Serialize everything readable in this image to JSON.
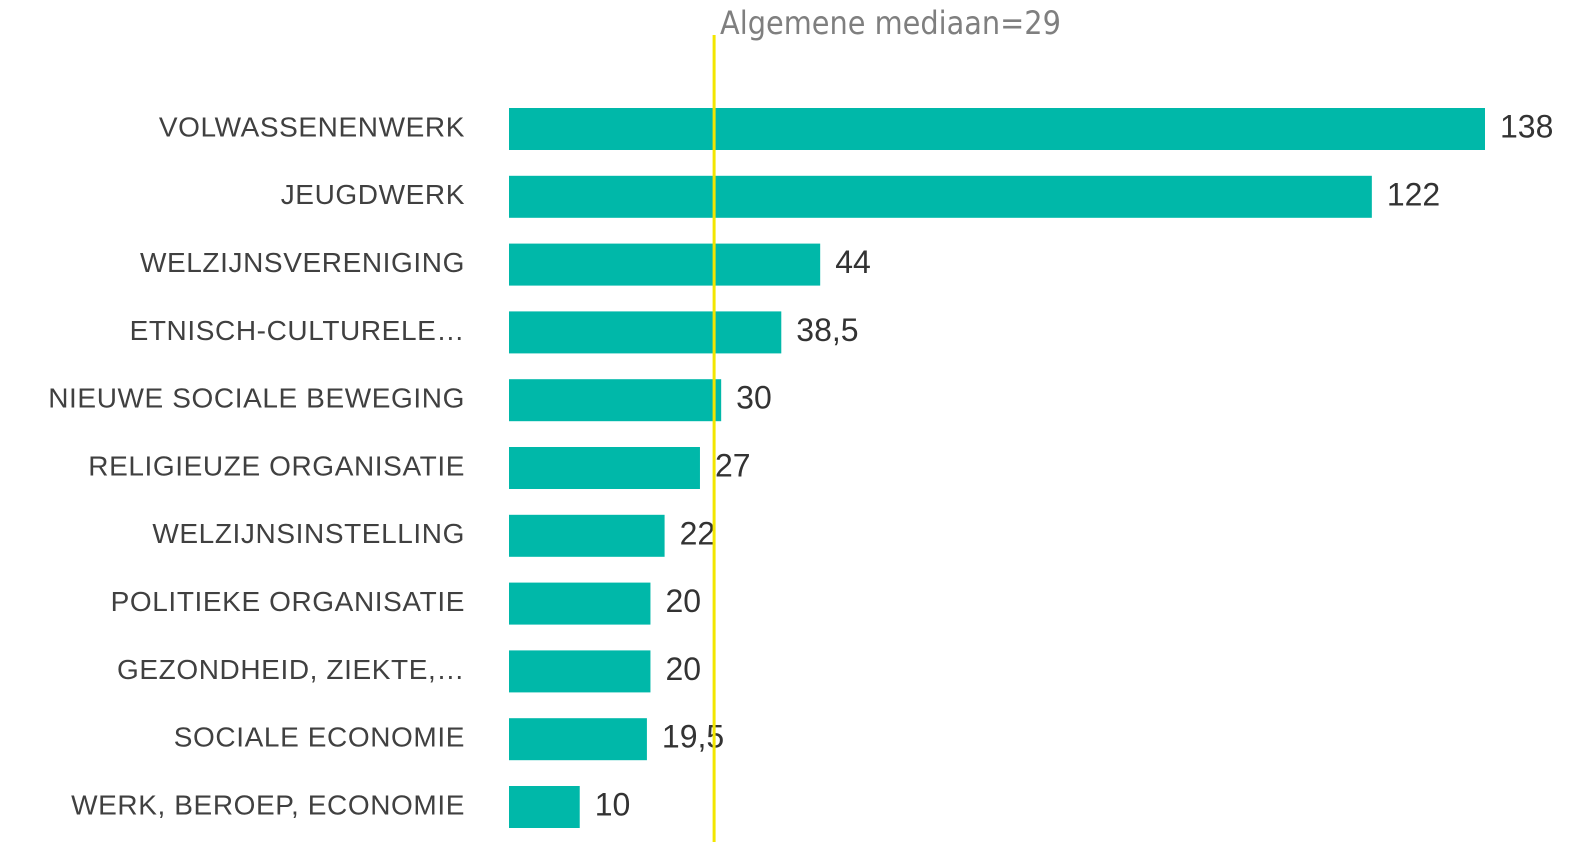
{
  "chart_data": {
    "type": "bar",
    "orientation": "horizontal",
    "categories": [
      "VOLWASSENENWERK",
      "JEUGDWERK",
      "WELZIJNSVERENIGING",
      "ETNISCH-CULTURELE…",
      "NIEUWE SOCIALE BEWEGING",
      "RELIGIEUZE ORGANISATIE",
      "WELZIJNSINSTELLING",
      "POLITIEKE ORGANISATIE",
      "GEZONDHEID, ZIEKTE,…",
      "SOCIALE ECONOMIE",
      "WERK, BEROEP, ECONOMIE"
    ],
    "values": [
      138,
      122,
      44,
      38.5,
      30,
      27,
      22,
      20,
      20,
      19.5,
      10
    ],
    "value_labels": [
      "138",
      "122",
      "44",
      "38,5",
      "30",
      "27",
      "22",
      "20",
      "20",
      "19,5",
      "10"
    ],
    "color": "#00b8a9",
    "median": 29,
    "median_color": "#f2e600",
    "annotation": "Algemene mediaan=29"
  }
}
